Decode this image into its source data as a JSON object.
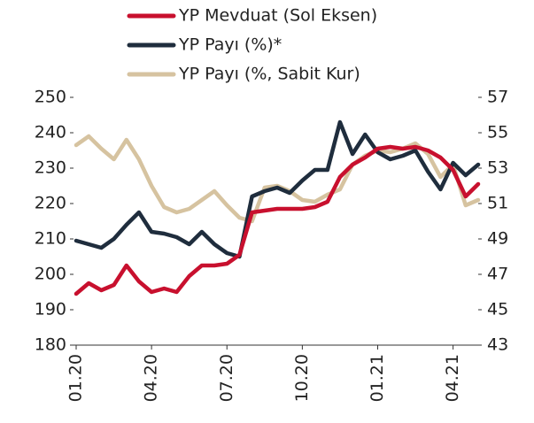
{
  "chart_data": {
    "type": "line",
    "categories": [
      "01.20",
      null,
      null,
      null,
      null,
      null,
      "04.20",
      null,
      null,
      null,
      null,
      null,
      "07.20",
      null,
      null,
      null,
      null,
      null,
      "10.20",
      null,
      null,
      null,
      null,
      null,
      "01.21",
      null,
      null,
      null,
      null,
      null,
      "04.21",
      null,
      null
    ],
    "series": [
      {
        "name": "YP Mevduat (Sol Eksen)",
        "color": "#c8102e",
        "axis": "y",
        "values": [
          194.5,
          197.5,
          195.5,
          197,
          202.5,
          198,
          195,
          196,
          195,
          199.5,
          202.5,
          202.5,
          203,
          205.5,
          217.5,
          218,
          218.5,
          218.5,
          218.5,
          219,
          220.5,
          227.5,
          231,
          233,
          235.5,
          236,
          235.5,
          236,
          235,
          233,
          229.5,
          222,
          225.5
        ]
      },
      {
        "name": "YP Payı (%)*",
        "color": "#1f2d3d",
        "axis": "y2",
        "values": [
          48.9,
          48.7,
          48.5,
          49,
          49.8,
          50.5,
          49.4,
          49.3,
          49.1,
          48.7,
          49.4,
          48.7,
          48.2,
          48,
          51.4,
          51.7,
          51.9,
          51.6,
          52.3,
          52.9,
          52.9,
          55.6,
          53.8,
          54.9,
          53.9,
          53.5,
          53.7,
          54,
          52.8,
          51.8,
          53.3,
          52.6,
          53.2
        ]
      },
      {
        "name": "YP Payı (%, Sabit Kur)",
        "color": "#d6c3a0",
        "axis": "y2",
        "values": [
          54.3,
          54.8,
          54.1,
          53.5,
          54.6,
          53.5,
          52,
          50.8,
          50.5,
          50.7,
          51.2,
          51.7,
          50.9,
          50.2,
          50,
          51.9,
          52,
          51.7,
          51.2,
          51.1,
          51.5,
          51.8,
          53.2,
          53.7,
          54,
          53.9,
          54.1,
          54.4,
          53.8,
          52.5,
          53.2,
          50.9,
          51.2
        ]
      }
    ],
    "ylim": [
      180,
      250
    ],
    "yticks": [
      180,
      190,
      200,
      210,
      220,
      230,
      240,
      250
    ],
    "y2lim": [
      43,
      57
    ],
    "y2ticks": [
      43,
      45,
      47,
      49,
      51,
      53,
      55,
      57
    ]
  }
}
